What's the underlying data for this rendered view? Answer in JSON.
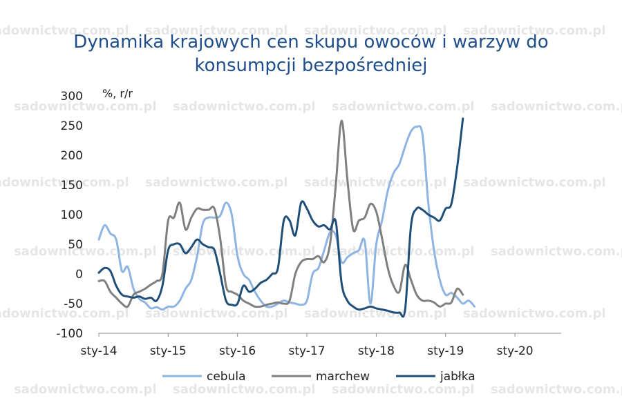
{
  "chart_data": {
    "type": "line",
    "title_lines": [
      "Dynamika krajowych cen skupu owoców i warzyw do",
      "konsumpcji bezpośredniej"
    ],
    "unit_label": "%, r/r",
    "ylim": [
      -100,
      300
    ],
    "yticks": [
      300,
      250,
      200,
      150,
      100,
      50,
      0,
      -50,
      -100
    ],
    "xlim": [
      0,
      80
    ],
    "xticks": [
      {
        "label": "sty-14",
        "x": 0
      },
      {
        "label": "sty-15",
        "x": 12
      },
      {
        "label": "sty-16",
        "x": 24
      },
      {
        "label": "sty-17",
        "x": 36
      },
      {
        "label": "sty-18",
        "x": 48
      },
      {
        "label": "sty-19",
        "x": 60
      },
      {
        "label": "sty-20",
        "x": 72
      }
    ],
    "watermark": "sadownictwo.com.pl",
    "series": [
      {
        "name": "cebula",
        "color": "#8eb4e3",
        "points": [
          [
            0,
            58
          ],
          [
            1,
            82
          ],
          [
            2,
            68
          ],
          [
            3,
            58
          ],
          [
            4,
            5
          ],
          [
            5,
            12
          ],
          [
            6,
            -25
          ],
          [
            7,
            -42
          ],
          [
            8,
            -48
          ],
          [
            9,
            -58
          ],
          [
            10,
            -56
          ],
          [
            11,
            -60
          ],
          [
            12,
            -55
          ],
          [
            13,
            -55
          ],
          [
            14,
            -45
          ],
          [
            15,
            -25
          ],
          [
            16,
            -10
          ],
          [
            17,
            30
          ],
          [
            18,
            85
          ],
          [
            19,
            95
          ],
          [
            20,
            95
          ],
          [
            21,
            98
          ],
          [
            22,
            120
          ],
          [
            23,
            100
          ],
          [
            24,
            30
          ],
          [
            25,
            0
          ],
          [
            26,
            -10
          ],
          [
            27,
            -30
          ],
          [
            28,
            -45
          ],
          [
            29,
            -55
          ],
          [
            30,
            -55
          ],
          [
            31,
            -50
          ],
          [
            32,
            -45
          ],
          [
            33,
            -48
          ],
          [
            34,
            -50
          ],
          [
            35,
            -52
          ],
          [
            36,
            -45
          ],
          [
            37,
            0
          ],
          [
            38,
            10
          ],
          [
            39,
            40
          ],
          [
            40,
            70
          ],
          [
            41,
            65
          ],
          [
            42,
            20
          ],
          [
            43,
            28
          ],
          [
            44,
            35
          ],
          [
            45,
            40
          ],
          [
            46,
            55
          ],
          [
            47,
            -50
          ],
          [
            48,
            50
          ],
          [
            49,
            90
          ],
          [
            50,
            140
          ],
          [
            51,
            170
          ],
          [
            52,
            185
          ],
          [
            53,
            215
          ],
          [
            54,
            240
          ],
          [
            55,
            248
          ],
          [
            56,
            235
          ],
          [
            57,
            120
          ],
          [
            58,
            40
          ],
          [
            59,
            -10
          ],
          [
            60,
            -35
          ],
          [
            61,
            -32
          ],
          [
            62,
            -40
          ],
          [
            63,
            -50
          ],
          [
            64,
            -45
          ],
          [
            65,
            -55
          ]
        ]
      },
      {
        "name": "marchew",
        "color": "#7f7f7f",
        "points": [
          [
            0,
            -12
          ],
          [
            1,
            -12
          ],
          [
            2,
            -30
          ],
          [
            3,
            -40
          ],
          [
            4,
            -50
          ],
          [
            5,
            -55
          ],
          [
            6,
            -35
          ],
          [
            7,
            -30
          ],
          [
            8,
            -25
          ],
          [
            9,
            -18
          ],
          [
            10,
            -12
          ],
          [
            11,
            0
          ],
          [
            12,
            90
          ],
          [
            13,
            95
          ],
          [
            14,
            120
          ],
          [
            15,
            75
          ],
          [
            16,
            95
          ],
          [
            17,
            110
          ],
          [
            18,
            108
          ],
          [
            19,
            108
          ],
          [
            20,
            110
          ],
          [
            21,
            60
          ],
          [
            22,
            -20
          ],
          [
            23,
            -30
          ],
          [
            24,
            -35
          ],
          [
            25,
            -45
          ],
          [
            26,
            -50
          ],
          [
            27,
            -55
          ],
          [
            28,
            -55
          ],
          [
            29,
            -52
          ],
          [
            30,
            -50
          ],
          [
            31,
            -48
          ],
          [
            32,
            -50
          ],
          [
            33,
            -45
          ],
          [
            34,
            0
          ],
          [
            35,
            20
          ],
          [
            36,
            25
          ],
          [
            37,
            25
          ],
          [
            38,
            30
          ],
          [
            39,
            20
          ],
          [
            40,
            50
          ],
          [
            41,
            150
          ],
          [
            42,
            258
          ],
          [
            43,
            160
          ],
          [
            44,
            75
          ],
          [
            45,
            90
          ],
          [
            46,
            95
          ],
          [
            47,
            118
          ],
          [
            48,
            105
          ],
          [
            49,
            60
          ],
          [
            50,
            10
          ],
          [
            51,
            -20
          ],
          [
            52,
            -30
          ],
          [
            53,
            15
          ],
          [
            54,
            -10
          ],
          [
            55,
            -35
          ],
          [
            56,
            -45
          ],
          [
            57,
            -45
          ],
          [
            58,
            -48
          ],
          [
            59,
            -55
          ],
          [
            60,
            -50
          ],
          [
            61,
            -48
          ],
          [
            62,
            -25
          ],
          [
            63,
            -35
          ]
        ]
      },
      {
        "name": "jabłka",
        "color": "#1f4e79",
        "points": [
          [
            0,
            2
          ],
          [
            1,
            10
          ],
          [
            2,
            5
          ],
          [
            3,
            -20
          ],
          [
            4,
            -35
          ],
          [
            5,
            -38
          ],
          [
            6,
            -40
          ],
          [
            7,
            -38
          ],
          [
            8,
            -42
          ],
          [
            9,
            -40
          ],
          [
            10,
            -45
          ],
          [
            11,
            -20
          ],
          [
            12,
            40
          ],
          [
            13,
            50
          ],
          [
            14,
            50
          ],
          [
            15,
            35
          ],
          [
            16,
            45
          ],
          [
            17,
            58
          ],
          [
            18,
            50
          ],
          [
            19,
            45
          ],
          [
            20,
            40
          ],
          [
            21,
            0
          ],
          [
            22,
            -45
          ],
          [
            23,
            -52
          ],
          [
            24,
            -50
          ],
          [
            25,
            -20
          ],
          [
            26,
            -30
          ],
          [
            27,
            -25
          ],
          [
            28,
            -15
          ],
          [
            29,
            -10
          ],
          [
            30,
            0
          ],
          [
            31,
            10
          ],
          [
            32,
            90
          ],
          [
            33,
            90
          ],
          [
            34,
            65
          ],
          [
            35,
            120
          ],
          [
            36,
            110
          ],
          [
            37,
            90
          ],
          [
            38,
            80
          ],
          [
            39,
            82
          ],
          [
            40,
            75
          ],
          [
            41,
            88
          ],
          [
            42,
            -15
          ],
          [
            43,
            -45
          ],
          [
            44,
            -55
          ],
          [
            45,
            -60
          ],
          [
            46,
            -58
          ],
          [
            47,
            -55
          ],
          [
            48,
            -58
          ],
          [
            49,
            -60
          ],
          [
            50,
            -62
          ],
          [
            51,
            -65
          ],
          [
            52,
            -65
          ],
          [
            53,
            -60
          ],
          [
            54,
            80
          ],
          [
            55,
            110
          ],
          [
            56,
            108
          ],
          [
            57,
            100
          ],
          [
            58,
            95
          ],
          [
            59,
            90
          ],
          [
            60,
            110
          ],
          [
            61,
            118
          ],
          [
            62,
            180
          ],
          [
            63,
            262
          ]
        ]
      }
    ]
  }
}
